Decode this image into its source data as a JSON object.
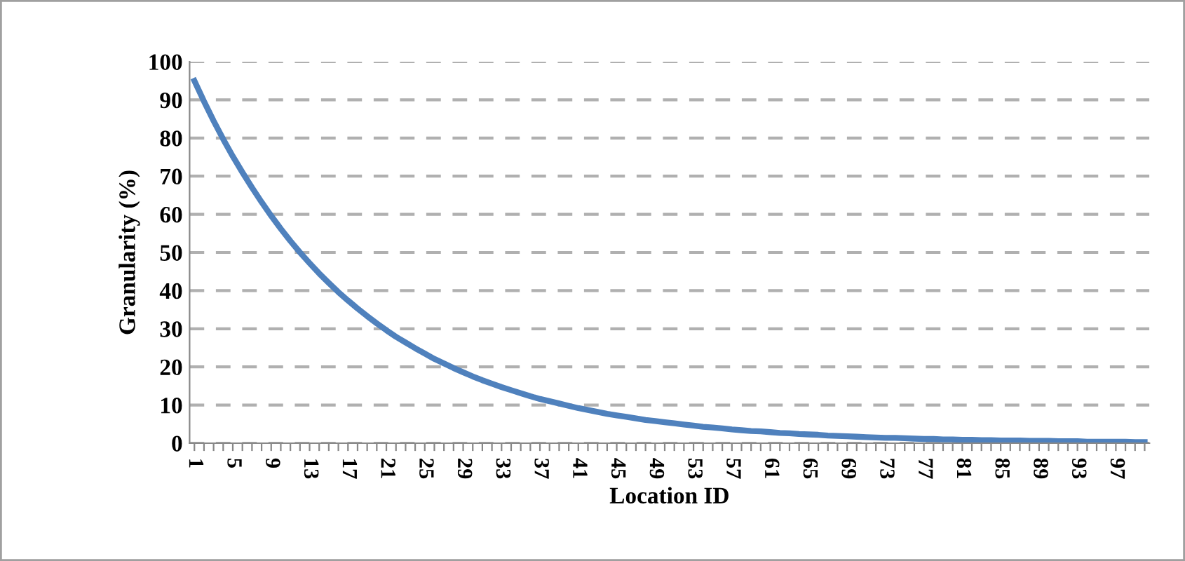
{
  "chart_data": {
    "type": "line",
    "xlabel": "Location ID",
    "ylabel": "Granularity (%)",
    "categories": [
      "1",
      null,
      null,
      null,
      "5",
      null,
      null,
      null,
      "9",
      null,
      null,
      null,
      "13",
      null,
      null,
      null,
      "17",
      null,
      null,
      null,
      "21",
      null,
      null,
      null,
      "25",
      null,
      null,
      null,
      "29",
      null,
      null,
      null,
      "33",
      null,
      null,
      null,
      "37",
      null,
      null,
      null,
      "41",
      null,
      null,
      null,
      "45",
      null,
      null,
      null,
      "49",
      null,
      null,
      null,
      "53",
      null,
      null,
      null,
      "57",
      null,
      null,
      null,
      "61",
      null,
      null,
      null,
      "65",
      null,
      null,
      null,
      "69",
      null,
      null,
      null,
      "73",
      null,
      null,
      null,
      "77",
      null,
      null,
      null,
      "81",
      null,
      null,
      null,
      "85",
      null,
      null,
      null,
      "89",
      null,
      null,
      null,
      "93",
      null,
      null,
      null,
      "97",
      null,
      null,
      null
    ],
    "series": [
      {
        "color": "#4f81bd",
        "values": [
          95,
          89.6,
          84.5,
          79.7,
          75.2,
          71,
          67,
          63.2,
          59.6,
          56.2,
          53,
          50,
          47.2,
          44.5,
          42,
          39.6,
          37.4,
          35.3,
          33.3,
          31.4,
          29.6,
          27.9,
          26.4,
          24.9,
          23.5,
          22.1,
          20.9,
          19.7,
          18.6,
          17.5,
          16.5,
          15.6,
          14.7,
          13.9,
          13.1,
          12.3,
          11.6,
          11,
          10.4,
          9.8,
          9.2,
          8.7,
          8.2,
          7.7,
          7.3,
          6.9,
          6.5,
          6.1,
          5.8,
          5.5,
          5.2,
          4.9,
          4.6,
          4.3,
          4.1,
          3.9,
          3.6,
          3.4,
          3.2,
          3.1,
          2.9,
          2.7,
          2.6,
          2.4,
          2.3,
          2.2,
          2,
          1.9,
          1.8,
          1.7,
          1.6,
          1.5,
          1.4,
          1.4,
          1.3,
          1.2,
          1.1,
          1.1,
          1,
          1,
          0.9,
          0.9,
          0.8,
          0.8,
          0.7,
          0.7,
          0.7,
          0.6,
          0.6,
          0.6,
          0.5,
          0.5,
          0.5,
          0.4,
          0.4,
          0.4,
          0.4,
          0.4,
          0.3,
          0.3
        ]
      }
    ],
    "ylim": [
      0,
      100
    ],
    "yticks": [
      0,
      10,
      20,
      30,
      40,
      50,
      60,
      70,
      80,
      90,
      100
    ],
    "grid": "y",
    "legend": false,
    "marker": "none",
    "line_style": "solid"
  }
}
